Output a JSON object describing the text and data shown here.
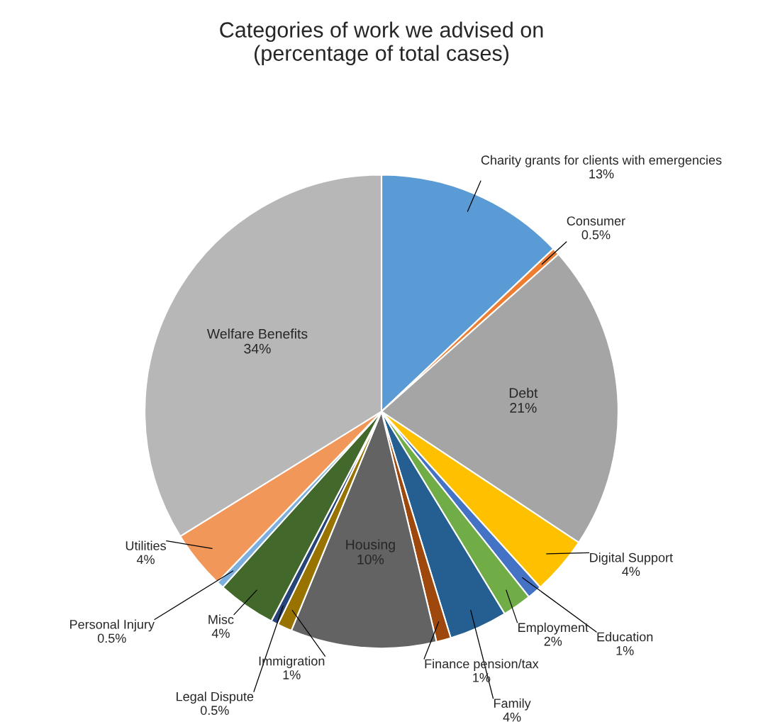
{
  "chart_data": {
    "type": "pie",
    "title": "Categories of work we advised on\n(percentage of total cases)",
    "categories": [
      "Charity grants for clients with emergencies",
      "Consumer",
      "Debt",
      "Digital Support",
      "Education",
      "Employment",
      "Family",
      "Finance pension/tax",
      "Housing",
      "Immigration",
      "Legal Dispute",
      "Misc",
      "Personal Injury",
      "Utilities",
      "Welfare Benefits"
    ],
    "values": [
      13,
      0.5,
      21,
      4,
      1,
      2,
      4,
      1,
      10,
      1,
      0.5,
      4,
      0.5,
      4,
      34
    ],
    "colors": [
      "#5b9bd5",
      "#ed7d31",
      "#a5a5a5",
      "#ffc000",
      "#4472c4",
      "#70ad47",
      "#255e91",
      "#9e480e",
      "#636363",
      "#997300",
      "#264478",
      "#43682b",
      "#7cafdd",
      "#f1975a",
      "#b7b7b7"
    ],
    "value_labels": [
      "13%",
      "0.5%",
      "21%",
      "4%",
      "1%",
      "2%",
      "4%",
      "1%",
      "10%",
      "1%",
      "0.5%",
      "4%",
      "0.5%",
      "4%",
      "34%"
    ]
  }
}
